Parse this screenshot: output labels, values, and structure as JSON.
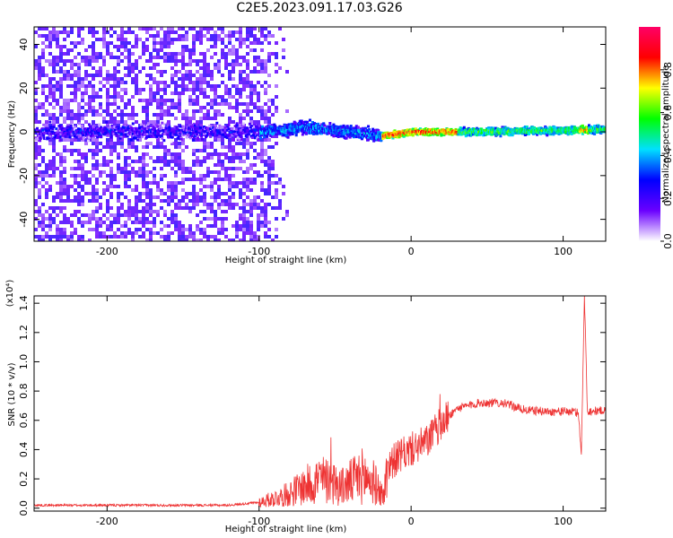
{
  "title": "C2E5.2023.091.17.03.G26",
  "chart_data": [
    {
      "type": "heatmap",
      "xlabel": "Height of straight line (km)",
      "ylabel": "Frequency (Hz)",
      "xlim": [
        -248,
        128
      ],
      "ylim": [
        -50,
        48
      ],
      "x_ticks": [
        -200,
        -100,
        0,
        100
      ],
      "y_ticks": [
        -40,
        -20,
        0,
        20,
        40
      ],
      "colorbar": {
        "label": "Normalized spectral amplitude",
        "range": [
          0.0,
          1.0
        ],
        "ticks": [
          0.0,
          0.2,
          0.4,
          0.6,
          0.8
        ],
        "colormap": [
          "#ffffff",
          "#6a00ff",
          "#0000ff",
          "#00e0ff",
          "#00ff00",
          "#ffff00",
          "#ff0000",
          "#ff0066"
        ]
      },
      "ridge_center_hz": [
        {
          "x": -248,
          "y": 0
        },
        {
          "x": -100,
          "y": 0
        },
        {
          "x": -70,
          "y": 2
        },
        {
          "x": -40,
          "y": 0
        },
        {
          "x": -20,
          "y": -2
        },
        {
          "x": 0,
          "y": 0
        },
        {
          "x": 40,
          "y": 0
        },
        {
          "x": 128,
          "y": 1
        }
      ]
    },
    {
      "type": "line",
      "xlabel": "Height of straight line (km)",
      "ylabel": "SNR (10 * v/v)",
      "scale_label": "(x10⁴)",
      "xlim": [
        -248,
        128
      ],
      "ylim": [
        -0.02,
        1.45
      ],
      "x_ticks": [
        -200,
        -100,
        0,
        100
      ],
      "y_ticks": [
        "0.0",
        "0.2",
        "0.4",
        "0.6",
        "0.8",
        "1.0",
        "1.2",
        "1.4"
      ],
      "line_color": "#ee3333",
      "envelope": [
        {
          "x": -248,
          "y": 0.02
        },
        {
          "x": -150,
          "y": 0.02
        },
        {
          "x": -120,
          "y": 0.02
        },
        {
          "x": -100,
          "y": 0.04
        },
        {
          "x": -85,
          "y": 0.08
        },
        {
          "x": -70,
          "y": 0.15
        },
        {
          "x": -60,
          "y": 0.2
        },
        {
          "x": -45,
          "y": 0.15
        },
        {
          "x": -32,
          "y": 0.22
        },
        {
          "x": -25,
          "y": 0.18
        },
        {
          "x": -18,
          "y": 0.08
        },
        {
          "x": -15,
          "y": 0.3
        },
        {
          "x": -8,
          "y": 0.35
        },
        {
          "x": 0,
          "y": 0.4
        },
        {
          "x": 10,
          "y": 0.45
        },
        {
          "x": 20,
          "y": 0.58
        },
        {
          "x": 30,
          "y": 0.68
        },
        {
          "x": 45,
          "y": 0.72
        },
        {
          "x": 60,
          "y": 0.72
        },
        {
          "x": 75,
          "y": 0.67
        },
        {
          "x": 90,
          "y": 0.66
        },
        {
          "x": 105,
          "y": 0.66
        },
        {
          "x": 110,
          "y": 0.65
        },
        {
          "x": 112,
          "y": 0.38
        },
        {
          "x": 114,
          "y": 1.45
        },
        {
          "x": 116,
          "y": 0.66
        },
        {
          "x": 128,
          "y": 0.67
        }
      ]
    }
  ]
}
